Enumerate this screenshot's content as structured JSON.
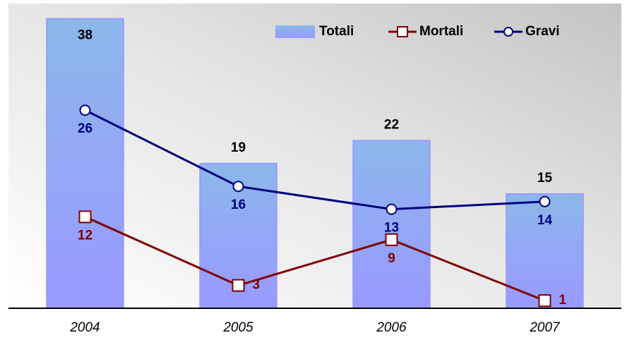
{
  "chart_data": {
    "type": "bar",
    "categories": [
      "2004",
      "2005",
      "2006",
      "2007"
    ],
    "series": [
      {
        "name": "Totali",
        "type": "bar",
        "color": "#9999ff",
        "values": [
          38,
          19,
          22,
          15
        ]
      },
      {
        "name": "Mortali",
        "type": "line",
        "color": "#800000",
        "values": [
          12,
          3,
          9,
          1
        ]
      },
      {
        "name": "Gravi",
        "type": "line",
        "color": "#000080",
        "values": [
          26,
          16,
          13,
          14
        ]
      }
    ],
    "ylim": [
      0,
      40
    ],
    "grid": false,
    "legend": "top-right"
  }
}
